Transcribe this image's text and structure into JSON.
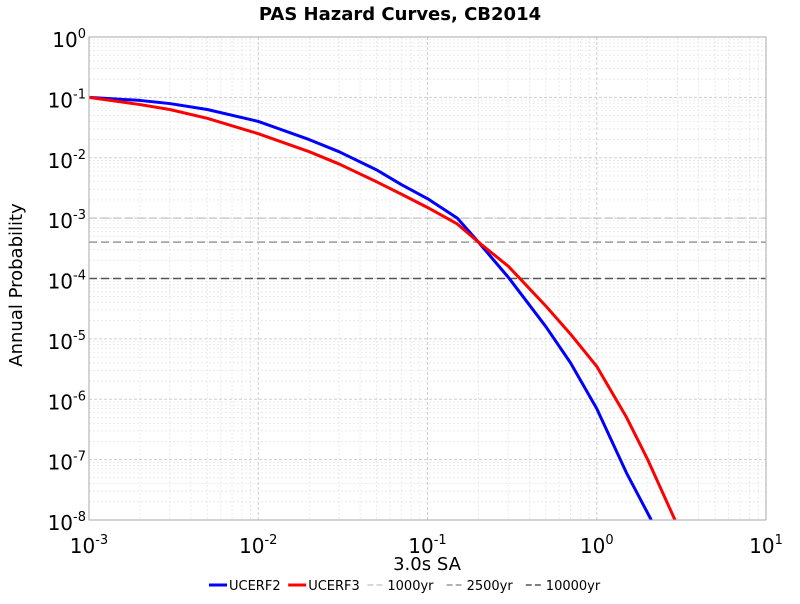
{
  "chart_data": {
    "type": "line",
    "title": "PAS Hazard Curves, CB2014",
    "xlabel": "3.0s SA",
    "ylabel": "Annual Probability",
    "x_scale": "log",
    "y_scale": "log",
    "xlim": [
      0.001,
      10
    ],
    "ylim": [
      1e-08,
      1
    ],
    "grid": true,
    "legend_position": "bottom",
    "x_ticks": [
      {
        "base": "10",
        "exp": "-3",
        "value": 0.001
      },
      {
        "base": "10",
        "exp": "-2",
        "value": 0.01
      },
      {
        "base": "10",
        "exp": "-1",
        "value": 0.1
      },
      {
        "base": "10",
        "exp": "0",
        "value": 1
      },
      {
        "base": "10",
        "exp": "1",
        "value": 10
      }
    ],
    "y_ticks": [
      {
        "base": "10",
        "exp": "0",
        "value": 1
      },
      {
        "base": "10",
        "exp": "-1",
        "value": 0.1
      },
      {
        "base": "10",
        "exp": "-2",
        "value": 0.01
      },
      {
        "base": "10",
        "exp": "-3",
        "value": 0.001
      },
      {
        "base": "10",
        "exp": "-4",
        "value": 0.0001
      },
      {
        "base": "10",
        "exp": "-5",
        "value": 1e-05
      },
      {
        "base": "10",
        "exp": "-6",
        "value": 1e-06
      },
      {
        "base": "10",
        "exp": "-7",
        "value": 1e-07
      },
      {
        "base": "10",
        "exp": "-8",
        "value": 1e-08
      }
    ],
    "series": [
      {
        "name": "UCERF2",
        "color": "#0000ff",
        "x": [
          0.001,
          0.002,
          0.003,
          0.005,
          0.01,
          0.02,
          0.03,
          0.05,
          0.07,
          0.1,
          0.15,
          0.2,
          0.3,
          0.5,
          0.7,
          1.0,
          1.5,
          2.1
        ],
        "y": [
          0.1,
          0.089,
          0.079,
          0.063,
          0.04,
          0.02,
          0.0126,
          0.0063,
          0.0036,
          0.0021,
          0.001,
          0.0004,
          0.000105,
          1.6e-05,
          4e-06,
          7e-07,
          6e-08,
          1e-08
        ]
      },
      {
        "name": "UCERF3",
        "color": "#ff0000",
        "x": [
          0.001,
          0.002,
          0.003,
          0.005,
          0.01,
          0.02,
          0.03,
          0.05,
          0.07,
          0.1,
          0.15,
          0.2,
          0.3,
          0.5,
          0.7,
          1.0,
          1.5,
          2.0,
          2.9
        ],
        "y": [
          0.1,
          0.076,
          0.063,
          0.045,
          0.025,
          0.0126,
          0.0079,
          0.004,
          0.0025,
          0.0015,
          0.0008,
          0.0004,
          0.00016,
          3.5e-05,
          1.2e-05,
          3.5e-06,
          5e-07,
          1e-07,
          1e-08
        ]
      }
    ],
    "reference_lines": [
      {
        "name": "1000yr",
        "y": 0.001,
        "color": "#cccccc"
      },
      {
        "name": "2500yr",
        "y": 0.0004,
        "color": "#999999"
      },
      {
        "name": "10000yr",
        "y": 0.0001,
        "color": "#555555"
      }
    ]
  }
}
